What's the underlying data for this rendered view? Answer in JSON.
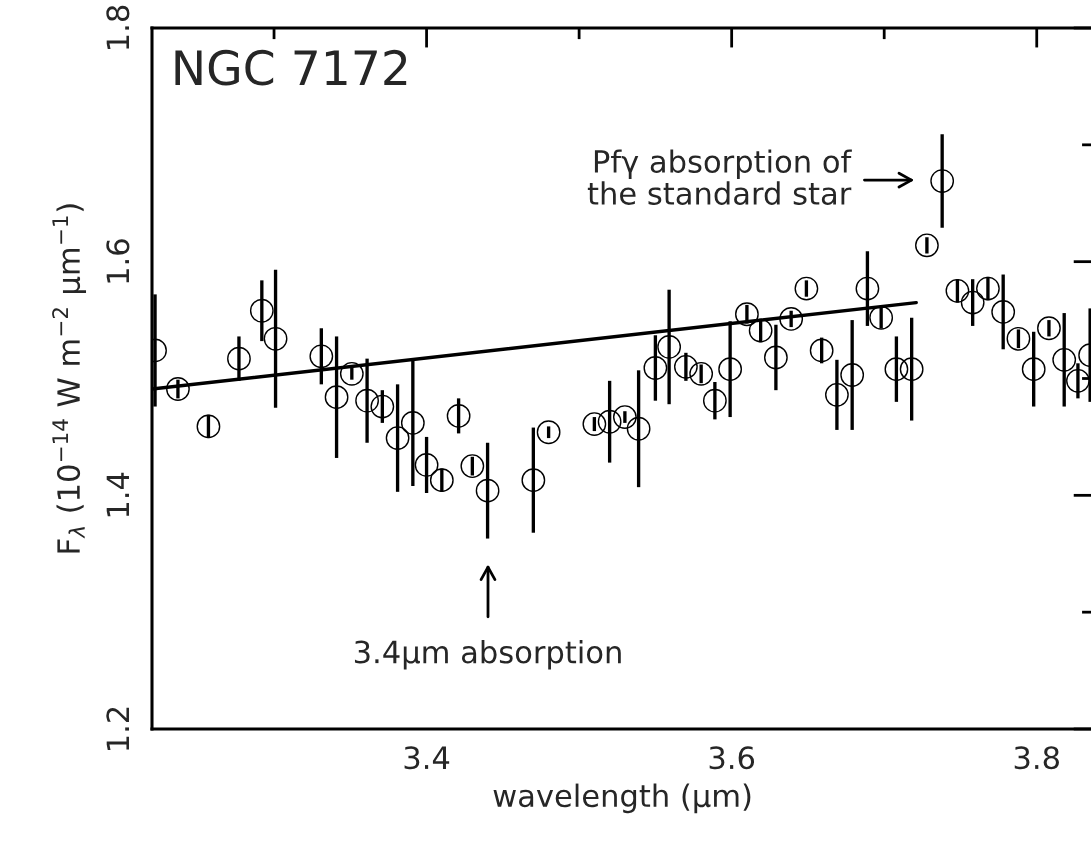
{
  "chart_data": {
    "type": "scatter",
    "xlabel": "wavelength (μm)",
    "ylabel": "F$_{λ}$ (10$^{−14}$ W m$^{−2}$ μm$^{−1}$)",
    "xlim": [
      3.22,
      3.837
    ],
    "ylim": [
      1.2,
      1.8
    ],
    "xticks": [
      {
        "value": 3.3,
        "label": null
      },
      3.4,
      {
        "value": 3.5,
        "label": null
      },
      3.6,
      {
        "value": 3.7,
        "label": null
      },
      3.8
    ],
    "yticks": [
      1.2,
      {
        "value": 1.3,
        "label": null
      },
      1.4,
      {
        "value": 1.5,
        "label": null
      },
      1.6,
      {
        "value": 1.7,
        "label": null
      },
      1.8
    ],
    "series": [
      {
        "marker": "circle",
        "color": "#000000",
        "x": [
          3.222,
          3.237,
          3.257,
          3.277,
          3.292,
          3.301,
          3.331,
          3.341,
          3.351,
          3.361,
          3.371,
          3.381,
          3.391,
          3.4,
          3.41,
          3.421,
          3.43,
          3.44,
          3.47,
          3.48,
          3.51,
          3.52,
          3.53,
          3.539,
          3.55,
          3.559,
          3.57,
          3.58,
          3.589,
          3.599,
          3.61,
          3.619,
          3.629,
          3.639,
          3.649,
          3.659,
          3.669,
          3.679,
          3.689,
          3.698,
          3.708,
          3.718,
          3.728,
          3.738,
          3.748,
          3.758,
          3.768,
          3.778,
          3.788,
          3.798,
          3.808,
          3.818,
          3.827,
          3.835
        ],
        "values": [
          1.524,
          1.491,
          1.459,
          1.517,
          1.558,
          1.534,
          1.519,
          1.484,
          1.504,
          1.481,
          1.476,
          1.449,
          1.462,
          1.426,
          1.413,
          1.468,
          1.425,
          1.404,
          1.413,
          1.454,
          1.461,
          1.463,
          1.467,
          1.457,
          1.509,
          1.527,
          1.51,
          1.504,
          1.481,
          1.508,
          1.555,
          1.541,
          1.518,
          1.551,
          1.577,
          1.524,
          1.486,
          1.503,
          1.577,
          1.552,
          1.508,
          1.508,
          1.614,
          1.669,
          1.575,
          1.565,
          1.577,
          1.557,
          1.534,
          1.508,
          1.543,
          1.516,
          1.498,
          1.52
        ],
        "errors": [
          0.048,
          0.008,
          0.01,
          0.019,
          0.026,
          0.059,
          0.024,
          0.052,
          0.005,
          0.036,
          0.014,
          0.046,
          0.054,
          0.024,
          0.01,
          0.015,
          0.008,
          0.041,
          0.045,
          0.005,
          0.006,
          0.035,
          0.005,
          0.05,
          0.028,
          0.049,
          0.012,
          0.008,
          0.016,
          0.041,
          0.008,
          0.01,
          0.028,
          0.007,
          0.007,
          0.011,
          0.03,
          0.047,
          0.032,
          0.009,
          0.028,
          0.044,
          0.007,
          0.04,
          0.01,
          0.02,
          0.01,
          0.032,
          0.008,
          0.032,
          0.007,
          0.04,
          0.015,
          0.04
        ]
      },
      {
        "type": "line",
        "color": "#000000",
        "x": [
          3.22,
          3.721
        ],
        "values": [
          1.491,
          1.565
        ],
        "line_style": "solid",
        "marker": "none"
      }
    ],
    "annotations": [
      "NGC 7172",
      "Pfγ absorption of\nthe standard star",
      "3.4μm absorption"
    ]
  }
}
